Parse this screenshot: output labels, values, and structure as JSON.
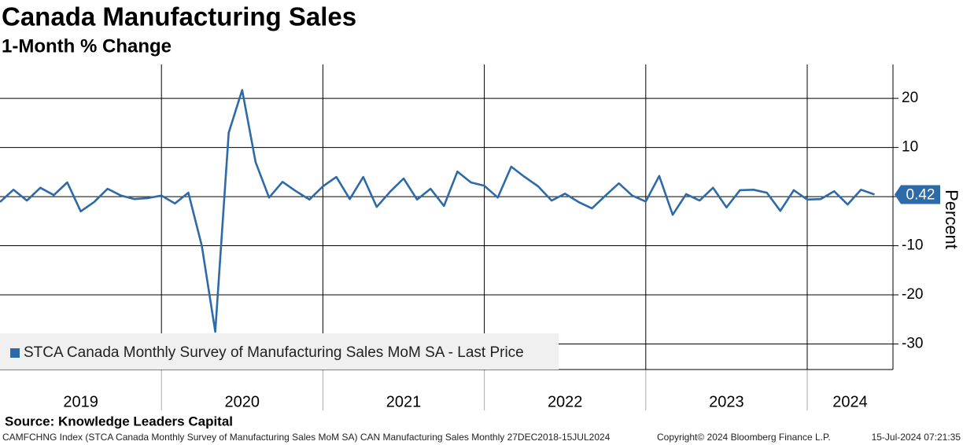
{
  "chart_data": {
    "type": "line",
    "title": "Canada Manufacturing Sales",
    "subtitle": "1-Month % Change",
    "y_label": "Percent",
    "source": "Source: Knowledge Leaders Capital",
    "footer_left": "CAMFCHNG Index (STCA Canada Monthly Survey of Manufacturing Sales MoM SA) CAN Manufacturing Sales  Monthly 27DEC2018-15JUL2024",
    "footer_copyright": "Copyright© 2024 Bloomberg Finance L.P.",
    "footer_date": "15-Jul-2024 07:21:35",
    "year_labels": [
      "2019",
      "2020",
      "2021",
      "2022",
      "2023",
      "2024"
    ],
    "ylim": [
      -35.2,
      26.9
    ],
    "yticks": [
      20,
      10,
      0,
      -10,
      -20,
      -30
    ],
    "grid": true,
    "legend": "bottom-left",
    "series": [
      {
        "name": "STCA Canada Monthly Survey of Manufacturing Sales MoM SA - Last Price",
        "color": "#2e6aa8",
        "values": [
          -1.1,
          1.4,
          -0.8,
          1.8,
          0.3,
          2.9,
          -3.0,
          -1.1,
          1.6,
          0.2,
          -0.5,
          -0.3,
          0.2,
          -1.4,
          0.8,
          -10,
          -27.5,
          13,
          21.7,
          7.0,
          -0.2,
          3.0,
          1.1,
          -0.6,
          2.1,
          4.0,
          -0.5,
          4.0,
          -2.1,
          1.0,
          3.7,
          -0.6,
          1.6,
          -1.9,
          5.1,
          2.9,
          2.2,
          -0.2,
          6.1,
          4.0,
          2.1,
          -0.8,
          0.6,
          -1.1,
          -2.4,
          0.2,
          2.7,
          0.2,
          -1.0,
          4.2,
          -3.7,
          0.5,
          -0.8,
          1.8,
          -2.2,
          1.3,
          1.4,
          0.8,
          -2.9,
          1.3,
          -0.6,
          -0.5,
          1.1,
          -1.6,
          1.4,
          0.42
        ]
      }
    ]
  }
}
